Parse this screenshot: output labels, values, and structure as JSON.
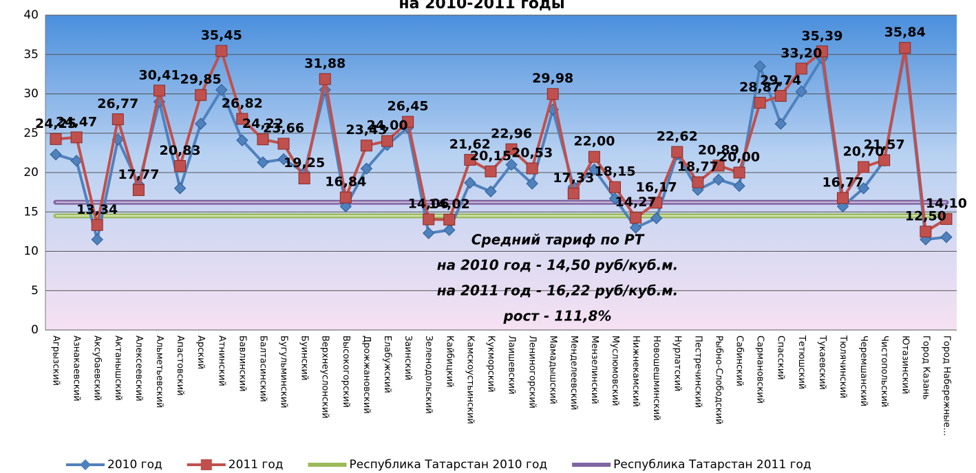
{
  "chart_data": {
    "type": "line",
    "title": "на 2010-2011 годы",
    "categories": [
      "Агрызский",
      "Азнакаевский",
      "Аксубаевский",
      "Актанышский",
      "Алексеевский",
      "Альметьевский",
      "Апастовский",
      "Арский",
      "Атнинский",
      "Бавлинский",
      "Балтасинский",
      "Бугульминский",
      "Буинский",
      "Верхнеуслонский",
      "Высокогорский",
      "Дрожжановский",
      "Елабужский",
      "Заинский",
      "Зеленодольский",
      "Кайбицкий",
      "Камскоустьинский",
      "Кукморский",
      "Лаишевский",
      "Лениногорский",
      "Мамадышский",
      "Менделеевский",
      "Мензелинский",
      "Муслюмовский",
      "Нижнекамский",
      "Новошешминский",
      "Нурлатский",
      "Пестречинский",
      "Рыбно-Слободский",
      "Сабинский",
      "Сармановский",
      "Спасский",
      "Тетюшский",
      "Тукаевский",
      "Тюлячинский",
      "Черемшанский",
      "Чистопольский",
      "Ютазинский",
      "Город Казань",
      "Город Набережные..."
    ],
    "series": [
      {
        "name": "2010 год",
        "color": "#4f81bd",
        "marker": "diamond",
        "values": [
          22.3,
          21.5,
          11.5,
          24.2,
          18.5,
          29,
          18,
          26.2,
          30.5,
          24.1,
          21.3,
          21.7,
          20,
          30.5,
          15.7,
          20.5,
          23.5,
          25.7,
          12.3,
          12.7,
          18.7,
          17.6,
          21,
          18.6,
          28,
          18.2,
          20.4,
          16.7,
          13,
          14.2,
          22.3,
          17.8,
          19.1,
          18.3,
          33.5,
          26.2,
          30.3,
          34.5,
          15.7,
          18,
          21.5,
          35.5,
          11.5,
          11.8
        ]
      },
      {
        "name": "2011 год",
        "color": "#c0504d",
        "marker": "square",
        "values": [
          24.25,
          24.47,
          13.34,
          26.77,
          17.77,
          30.41,
          20.83,
          29.85,
          35.45,
          26.82,
          24.22,
          23.66,
          19.25,
          31.88,
          16.84,
          23.43,
          24.0,
          26.45,
          14.06,
          14.02,
          21.62,
          20.15,
          22.96,
          20.53,
          29.98,
          17.33,
          22.0,
          18.15,
          14.27,
          16.17,
          22.62,
          18.77,
          20.89,
          20.0,
          28.87,
          29.74,
          33.2,
          35.39,
          16.77,
          20.7,
          21.57,
          35.84,
          12.5,
          14.1
        ],
        "value_labels": [
          "24,25",
          "24,47",
          "13,34",
          "26,77",
          "17,77",
          "30,41",
          "20,83",
          "29,85",
          "35,45",
          "26,82",
          "24,22",
          "23,66",
          "19,25",
          "31,88",
          "16,84",
          "23,43",
          "24,00",
          "26,45",
          "14,06",
          "14,02",
          "21,62",
          "20,15",
          "22,96",
          "20,53",
          "29,98",
          "17,33",
          "22,00",
          "18,15",
          "14,27",
          "16,17",
          "22,62",
          "18,77",
          "20,89",
          "20,00",
          "28,87",
          "29,74",
          "33,20",
          "35,39",
          "16,77",
          "20,70",
          "21,57",
          "35,84",
          "12,50",
          "14,10"
        ]
      },
      {
        "name": "Республика Татарстан 2010 год",
        "color": "#9bbb59",
        "marker": "none",
        "values": [
          14.5,
          14.5,
          14.5,
          14.5,
          14.5,
          14.5,
          14.5,
          14.5,
          14.5,
          14.5,
          14.5,
          14.5,
          14.5,
          14.5,
          14.5,
          14.5,
          14.5,
          14.5,
          14.5,
          14.5,
          14.5,
          14.5,
          14.5,
          14.5,
          14.5,
          14.5,
          14.5,
          14.5,
          14.5,
          14.5,
          14.5,
          14.5,
          14.5,
          14.5,
          14.5,
          14.5,
          14.5,
          14.5,
          14.5,
          14.5,
          14.5,
          14.5,
          14.5,
          14.5
        ]
      },
      {
        "name": "Республика Татарстан 2011 год",
        "color": "#8064a2",
        "marker": "none",
        "values": [
          16.22,
          16.22,
          16.22,
          16.22,
          16.22,
          16.22,
          16.22,
          16.22,
          16.22,
          16.22,
          16.22,
          16.22,
          16.22,
          16.22,
          16.22,
          16.22,
          16.22,
          16.22,
          16.22,
          16.22,
          16.22,
          16.22,
          16.22,
          16.22,
          16.22,
          16.22,
          16.22,
          16.22,
          16.22,
          16.22,
          16.22,
          16.22,
          16.22,
          16.22,
          16.22,
          16.22,
          16.22,
          16.22,
          16.22,
          16.22,
          16.22,
          16.22,
          16.22,
          16.22
        ]
      }
    ],
    "annotation": [
      "Средний тариф по РТ",
      "на 2010 год - 14,50 руб/куб.м.",
      "на 2011 год - 16,22 руб/куб.м.",
      "рост - 111,8%"
    ],
    "ylim": [
      0,
      40
    ],
    "yticks": [
      0,
      5,
      10,
      15,
      20,
      25,
      30,
      35,
      40
    ],
    "grid": true,
    "legend": "bottom"
  }
}
